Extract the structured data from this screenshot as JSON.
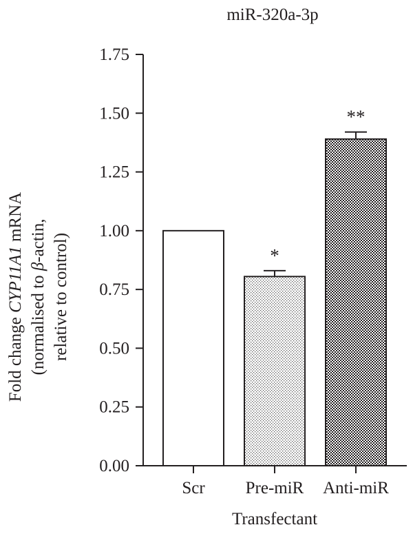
{
  "chart_data": {
    "type": "bar",
    "title": "miR-320a-3p",
    "xlabel": "Transfectant",
    "ylabel": {
      "line1_prefix": "Fold change ",
      "line1_gene": "CYP11A1",
      "line1_suffix": " mRNA",
      "line2_prefix": "(normalised to ",
      "line2_beta": "β",
      "line2_suffix": "-actin,",
      "line3": "relative to control)"
    },
    "categories": [
      "Scr",
      "Pre-miR",
      "Anti-miR"
    ],
    "values": [
      1.0,
      0.805,
      1.39
    ],
    "error": [
      0,
      0.025,
      0.03
    ],
    "significance": [
      "",
      "*",
      "**"
    ],
    "fills": [
      "solid-white",
      "light-dots",
      "dense-checker"
    ],
    "ylim": [
      0,
      1.75
    ],
    "yticks": [
      "0.00",
      "0.25",
      "0.50",
      "0.75",
      "1.00",
      "1.25",
      "1.50",
      "1.75"
    ],
    "grid": false
  }
}
